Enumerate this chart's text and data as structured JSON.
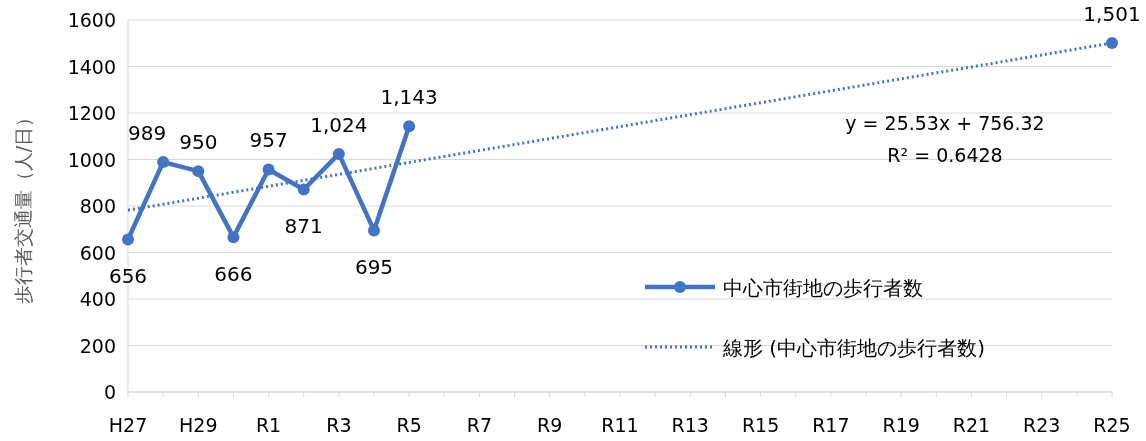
{
  "chart_data": {
    "type": "line",
    "categories": [
      "H27",
      null,
      "H29",
      null,
      "R1",
      null,
      "R3",
      null,
      "R5",
      null,
      "R7",
      null,
      "R9",
      null,
      "R11",
      null,
      "R13",
      null,
      "R15",
      null,
      "R17",
      null,
      "R19",
      null,
      "R21",
      null,
      "R23",
      null,
      "R25"
    ],
    "ylabel": "歩行者交通量（人/日）",
    "ylim": [
      0,
      1600
    ],
    "yticks": [
      0,
      200,
      400,
      600,
      800,
      1000,
      1200,
      1400,
      1600
    ],
    "grid": "y",
    "legend": "right",
    "series": [
      {
        "name": "中心市街地の歩行者数",
        "color": "#4472c4",
        "marker": "circle",
        "line_style": "solid",
        "values": [
          656,
          989,
          950,
          666,
          957,
          871,
          1024,
          695,
          1143,
          null,
          null,
          null,
          null,
          null,
          null,
          null,
          null,
          null,
          null,
          null,
          null,
          null,
          null,
          null,
          null,
          null,
          null,
          null,
          1501
        ],
        "value_labels": [
          "656",
          "989",
          "950",
          "666",
          "957",
          "871",
          "1,024",
          "695",
          "1,143",
          null,
          null,
          null,
          null,
          null,
          null,
          null,
          null,
          null,
          null,
          null,
          null,
          null,
          null,
          null,
          null,
          null,
          null,
          null,
          "1,501"
        ]
      },
      {
        "name": "線形 (中心市街地の歩行者数)",
        "type": "line",
        "color": "#4472c4",
        "marker": "none",
        "line_style": "dotted",
        "x": [
          "H27",
          "R25"
        ],
        "values": [
          782,
          1501
        ]
      }
    ],
    "annotations": [
      "y = 25.53x + 756.32",
      "R² = 0.6428"
    ]
  }
}
